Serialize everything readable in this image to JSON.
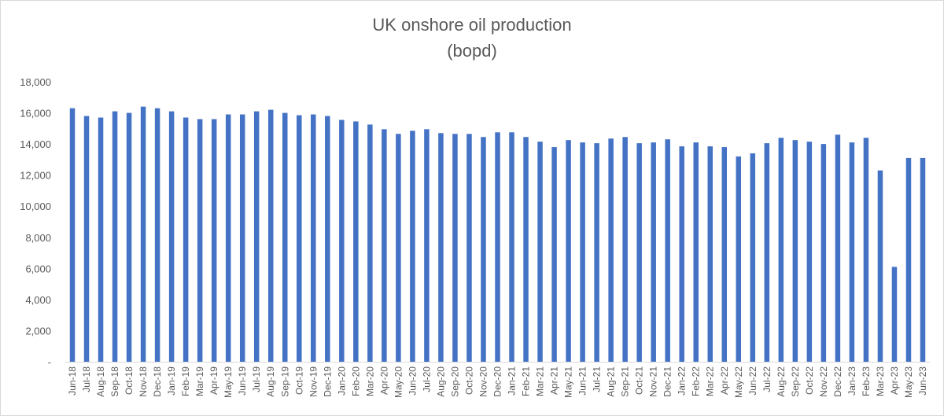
{
  "chart_data": {
    "type": "bar",
    "title_line1": "UK onshore oil production",
    "title_line2": "(bopd)",
    "xlabel": "",
    "ylabel": "",
    "ylim": [
      0,
      18000
    ],
    "yticks": [
      0,
      2000,
      4000,
      6000,
      8000,
      10000,
      12000,
      14000,
      16000,
      18000
    ],
    "ytick_labels": [
      "-",
      "2,000",
      "4,000",
      "6,000",
      "8,000",
      "10,000",
      "12,000",
      "14,000",
      "16,000",
      "18,000"
    ],
    "grid": false,
    "legend": "none",
    "bar_color": "#4472c4",
    "categories": [
      "Jun-18",
      "Jul-18",
      "Aug-18",
      "Sep-18",
      "Oct-18",
      "Nov-18",
      "Dec-18",
      "Jan-19",
      "Feb-19",
      "Mar-19",
      "Apr-19",
      "May-19",
      "Jun-19",
      "Jul-19",
      "Aug-19",
      "Sep-19",
      "Oct-19",
      "Nov-19",
      "Dec-19",
      "Jan-20",
      "Feb-20",
      "Mar-20",
      "Apr-20",
      "May-20",
      "Jun-20",
      "Jul-20",
      "Aug-20",
      "Sep-20",
      "Oct-20",
      "Nov-20",
      "Dec-20",
      "Jan-21",
      "Feb-21",
      "Mar-21",
      "Apr-21",
      "May-21",
      "Jun-21",
      "Jul-21",
      "Aug-21",
      "Sep-21",
      "Oct-21",
      "Nov-21",
      "Dec-21",
      "Jan-22",
      "Feb-22",
      "Mar-22",
      "Apr-22",
      "May-22",
      "Jun-22",
      "Jul-22",
      "Aug-22",
      "Sep-22",
      "Oct-22",
      "Nov-22",
      "Dec-22",
      "Jan-23",
      "Feb-23",
      "Mar-23",
      "Apr-23",
      "May-23",
      "Jun-23"
    ],
    "values": [
      16300,
      15800,
      15700,
      16100,
      16000,
      16400,
      16300,
      16100,
      15700,
      15600,
      15600,
      15900,
      15900,
      16100,
      16200,
      16000,
      15850,
      15900,
      15800,
      15550,
      15450,
      15250,
      14950,
      14650,
      14850,
      14950,
      14700,
      14650,
      14650,
      14450,
      14750,
      14750,
      14450,
      14150,
      13800,
      14250,
      14100,
      14050,
      14350,
      14450,
      14050,
      14100,
      14300,
      13850,
      14100,
      13850,
      13800,
      13200,
      13400,
      14050,
      14400,
      14250,
      14150,
      14000,
      14600,
      14100,
      14400,
      12300,
      6100,
      13100,
      13100
    ]
  }
}
